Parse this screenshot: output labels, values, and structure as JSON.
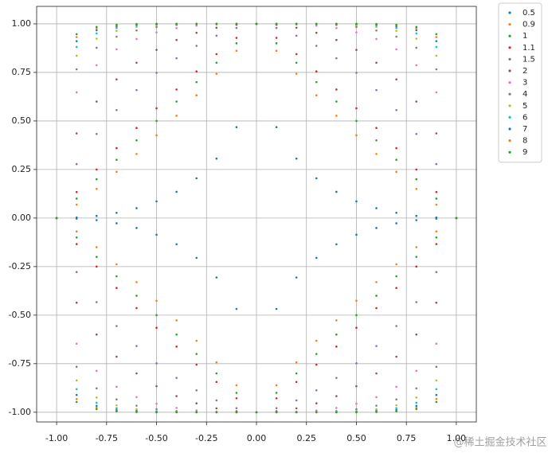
{
  "chart_data": {
    "type": "scatter",
    "x": [
      -1,
      -0.9,
      -0.8,
      -0.7,
      -0.6,
      -0.5,
      -0.4,
      -0.3,
      -0.2,
      -0.1,
      0,
      0.1,
      0.2,
      0.3,
      0.4,
      0.5,
      0.6,
      0.7,
      0.8,
      0.9,
      1,
      -1,
      -0.9,
      -0.8,
      -0.7,
      -0.6,
      -0.5,
      -0.4,
      -0.3,
      -0.2,
      -0.1,
      0,
      0.1,
      0.2,
      0.3,
      0.4,
      0.5,
      0.6,
      0.7,
      0.8,
      0.9,
      1
    ],
    "series": [
      {
        "name": "0.5",
        "color": "#1f77b4",
        "values": [
          0,
          0.003,
          0.011,
          0.027,
          0.051,
          0.086,
          0.135,
          0.205,
          0.306,
          0.468,
          1,
          0.468,
          0.306,
          0.205,
          0.135,
          0.086,
          0.051,
          0.027,
          0.011,
          0.003,
          0,
          0,
          -0.003,
          -0.011,
          -0.027,
          -0.051,
          -0.086,
          -0.135,
          -0.205,
          -0.306,
          -0.468,
          -1,
          -0.468,
          -0.306,
          -0.205,
          -0.135,
          -0.086,
          -0.051,
          -0.027,
          -0.011,
          -0.003,
          0
        ]
      },
      {
        "name": "0.9",
        "color": "#ff7f0e",
        "values": [
          0,
          0.069,
          0.15,
          0.238,
          0.33,
          0.426,
          0.527,
          0.632,
          0.743,
          0.861,
          1,
          0.861,
          0.743,
          0.632,
          0.527,
          0.426,
          0.33,
          0.238,
          0.15,
          0.069,
          0,
          0,
          -0.069,
          -0.15,
          -0.238,
          -0.33,
          -0.426,
          -0.527,
          -0.632,
          -0.743,
          -0.861,
          -1,
          -0.861,
          -0.743,
          -0.632,
          -0.527,
          -0.426,
          -0.33,
          -0.238,
          -0.15,
          -0.069,
          0
        ]
      },
      {
        "name": "1",
        "color": "#2ca02c",
        "values": [
          0,
          0.1,
          0.2,
          0.3,
          0.4,
          0.5,
          0.6,
          0.7,
          0.8,
          0.9,
          1,
          0.9,
          0.8,
          0.7,
          0.6,
          0.5,
          0.4,
          0.3,
          0.2,
          0.1,
          0,
          0,
          -0.1,
          -0.2,
          -0.3,
          -0.4,
          -0.5,
          -0.6,
          -0.7,
          -0.8,
          -0.9,
          -1,
          -0.9,
          -0.8,
          -0.7,
          -0.6,
          -0.5,
          -0.4,
          -0.3,
          -0.2,
          -0.1,
          0
        ]
      },
      {
        "name": "1.1",
        "color": "#d62728",
        "values": [
          0,
          0.134,
          0.25,
          0.36,
          0.464,
          0.565,
          0.662,
          0.755,
          0.844,
          0.928,
          1,
          0.928,
          0.844,
          0.755,
          0.662,
          0.565,
          0.464,
          0.36,
          0.25,
          0.134,
          0,
          0,
          -0.134,
          -0.25,
          -0.36,
          -0.464,
          -0.565,
          -0.662,
          -0.755,
          -0.844,
          -0.928,
          -1,
          -0.928,
          -0.844,
          -0.755,
          -0.662,
          -0.565,
          -0.464,
          -0.36,
          -0.25,
          -0.134,
          0
        ]
      },
      {
        "name": "1.5",
        "color": "#9467bd",
        "values": [
          0,
          0.278,
          0.433,
          0.556,
          0.659,
          0.748,
          0.823,
          0.887,
          0.939,
          0.979,
          1,
          0.979,
          0.939,
          0.887,
          0.823,
          0.748,
          0.659,
          0.556,
          0.433,
          0.278,
          0,
          0,
          -0.278,
          -0.433,
          -0.556,
          -0.659,
          -0.748,
          -0.823,
          -0.887,
          -0.939,
          -0.979,
          -1,
          -0.979,
          -0.939,
          -0.887,
          -0.823,
          -0.748,
          -0.659,
          -0.556,
          -0.433,
          -0.278,
          0
        ]
      },
      {
        "name": "2",
        "color": "#8c564b",
        "values": [
          0,
          0.436,
          0.6,
          0.714,
          0.8,
          0.866,
          0.917,
          0.954,
          0.98,
          0.995,
          1,
          0.995,
          0.98,
          0.954,
          0.917,
          0.866,
          0.8,
          0.714,
          0.6,
          0.436,
          0,
          0,
          -0.436,
          -0.6,
          -0.714,
          -0.8,
          -0.866,
          -0.917,
          -0.954,
          -0.98,
          -0.995,
          -1,
          -0.995,
          -0.98,
          -0.954,
          -0.917,
          -0.866,
          -0.8,
          -0.714,
          -0.6,
          -0.436,
          0
        ]
      },
      {
        "name": "3",
        "color": "#e377c2",
        "values": [
          0,
          0.647,
          0.787,
          0.869,
          0.922,
          0.956,
          0.978,
          0.991,
          0.997,
          1,
          1,
          1,
          0.997,
          0.991,
          0.978,
          0.956,
          0.922,
          0.869,
          0.787,
          0.647,
          0,
          0,
          -0.647,
          -0.787,
          -0.869,
          -0.922,
          -0.956,
          -0.978,
          -0.991,
          -0.997,
          -1,
          -1,
          -1,
          -0.997,
          -0.991,
          -0.978,
          -0.956,
          -0.922,
          -0.869,
          -0.787,
          -0.647,
          0
        ]
      },
      {
        "name": "4",
        "color": "#7f7f7f",
        "values": [
          0,
          0.766,
          0.877,
          0.934,
          0.966,
          0.984,
          0.994,
          0.998,
          1,
          1,
          1,
          1,
          1,
          0.998,
          0.994,
          0.984,
          0.966,
          0.934,
          0.877,
          0.766,
          0,
          0,
          -0.766,
          -0.877,
          -0.934,
          -0.966,
          -0.984,
          -0.994,
          -0.998,
          -1,
          -1,
          -1,
          -1,
          -1,
          -0.998,
          -0.994,
          -0.984,
          -0.966,
          -0.934,
          -0.877,
          -0.766,
          0
        ]
      },
      {
        "name": "5",
        "color": "#bcbd22",
        "values": [
          0,
          0.836,
          0.924,
          0.964,
          0.984,
          0.994,
          0.998,
          0.999,
          1,
          1,
          1,
          1,
          1,
          0.999,
          0.998,
          0.994,
          0.984,
          0.964,
          0.924,
          0.836,
          0,
          0,
          -0.836,
          -0.924,
          -0.964,
          -0.984,
          -0.994,
          -0.998,
          -0.999,
          -1,
          -1,
          -1,
          -1,
          -1,
          -0.999,
          -0.998,
          -0.994,
          -0.984,
          -0.964,
          -0.924,
          -0.836,
          0
        ]
      },
      {
        "name": "6",
        "color": "#17becf",
        "values": [
          0,
          0.881,
          0.951,
          0.979,
          0.992,
          0.997,
          0.999,
          1,
          1,
          1,
          1,
          1,
          1,
          1,
          0.999,
          0.997,
          0.992,
          0.979,
          0.951,
          0.881,
          0,
          0,
          -0.881,
          -0.951,
          -0.979,
          -0.992,
          -0.997,
          -0.999,
          -1,
          -1,
          -1,
          -1,
          -1,
          -1,
          -1,
          -0.999,
          -0.997,
          -0.992,
          -0.979,
          -0.951,
          -0.881,
          0
        ]
      },
      {
        "name": "7",
        "color": "#1f77b4",
        "values": [
          0,
          0.911,
          0.967,
          0.988,
          0.996,
          0.999,
          1,
          1,
          1,
          1,
          1,
          1,
          1,
          1,
          1,
          0.999,
          0.996,
          0.988,
          0.967,
          0.911,
          0,
          0,
          -0.911,
          -0.967,
          -0.988,
          -0.996,
          -0.999,
          -1,
          -1,
          -1,
          -1,
          -1,
          -1,
          -1,
          -1,
          -1,
          -0.999,
          -0.996,
          -0.988,
          -0.967,
          -0.911,
          0
        ]
      },
      {
        "name": "8",
        "color": "#ff7f0e",
        "values": [
          0,
          0.932,
          0.977,
          0.993,
          0.998,
          1,
          1,
          1,
          1,
          1,
          1,
          1,
          1,
          1,
          1,
          1,
          0.998,
          0.993,
          0.977,
          0.932,
          0,
          0,
          -0.932,
          -0.977,
          -0.993,
          -0.998,
          -1,
          -1,
          -1,
          -1,
          -1,
          -1,
          -1,
          -1,
          -1,
          -1,
          -1,
          -0.998,
          -0.993,
          -0.977,
          -0.932,
          0
        ]
      },
      {
        "name": "9",
        "color": "#2ca02c",
        "values": [
          0,
          0.947,
          0.984,
          0.995,
          0.999,
          1,
          1,
          1,
          1,
          1,
          1,
          1,
          1,
          1,
          1,
          1,
          0.999,
          0.995,
          0.984,
          0.947,
          0,
          0,
          -0.947,
          -0.984,
          -0.995,
          -0.999,
          -1,
          -1,
          -1,
          -1,
          -1,
          -1,
          -1,
          -1,
          -1,
          -1,
          -1,
          -0.999,
          -0.995,
          -0.984,
          -0.947,
          0
        ]
      }
    ],
    "xlim": [
      -1.1,
      1.1
    ],
    "ylim": [
      -1.05,
      1.09
    ],
    "xticks": [
      {
        "value": -1,
        "label": "-1.00"
      },
      {
        "value": -0.75,
        "label": "-0.75"
      },
      {
        "value": -0.5,
        "label": "-0.50"
      },
      {
        "value": -0.25,
        "label": "-0.25"
      },
      {
        "value": 0,
        "label": "0.00"
      },
      {
        "value": 0.25,
        "label": "0.25"
      },
      {
        "value": 0.5,
        "label": "0.50"
      },
      {
        "value": 0.75,
        "label": "0.75"
      },
      {
        "value": 1,
        "label": "1.00"
      }
    ],
    "yticks": [
      {
        "value": -1,
        "label": "-1.00"
      },
      {
        "value": -0.75,
        "label": "-0.75"
      },
      {
        "value": -0.5,
        "label": "-0.50"
      },
      {
        "value": -0.25,
        "label": "-0.25"
      },
      {
        "value": 0,
        "label": "0.00"
      },
      {
        "value": 0.25,
        "label": "0.25"
      },
      {
        "value": 0.5,
        "label": "0.50"
      },
      {
        "value": 0.75,
        "label": "0.75"
      },
      {
        "value": 1,
        "label": "1.00"
      }
    ],
    "grid": true,
    "legend": "outside-upper-right",
    "watermark": "@稀土掘金技术社区"
  }
}
